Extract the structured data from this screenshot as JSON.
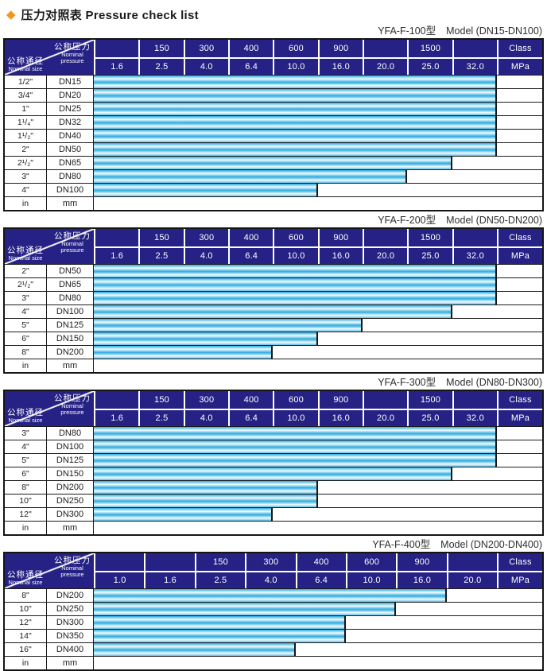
{
  "title": {
    "diamond": "◆",
    "text": "压力对照表 Pressure check list"
  },
  "labels": {
    "nominal_pressure_zh": "公称压力",
    "nominal_pressure_en": [
      "Nominal",
      "pressure"
    ],
    "nominal_size_zh": "公称通径",
    "nominal_size_en": "Nominal size",
    "class": "Class",
    "mpa": "MPa"
  },
  "colors": {
    "header_bg": "#262184",
    "bar_cyan": "#2CACDF",
    "bar_highlight": "#F2FBFF",
    "diamond_orange": "#F7941D",
    "border_dark": "#151515"
  },
  "chart_data": [
    {
      "type": "bar",
      "model": "YFA-F-100型",
      "range": "Model (DN15-DN100)",
      "class_row": [
        "",
        "150",
        "300",
        "400",
        "600",
        "900",
        "",
        "1500",
        ""
      ],
      "mpa_row": [
        "1.6",
        "2.5",
        "4.0",
        "6.4",
        "10.0",
        "16.0",
        "20.0",
        "25.0",
        "32.0"
      ],
      "class_unit": "Class",
      "mpa_unit": "MPa",
      "categories": [
        "DN15",
        "DN20",
        "DN25",
        "DN32",
        "DN40",
        "DN50",
        "DN65",
        "DN80",
        "DN100"
      ],
      "values": [
        32.0,
        32.0,
        32.0,
        32.0,
        32.0,
        32.0,
        25.0,
        20.0,
        10.0
      ],
      "rows": [
        {
          "size": "1/2\"",
          "dn": "DN15",
          "span": 9,
          "max_mpa": 32.0
        },
        {
          "size": "3/4\"",
          "dn": "DN20",
          "span": 9,
          "max_mpa": 32.0
        },
        {
          "size": "1\"",
          "dn": "DN25",
          "span": 9,
          "max_mpa": 32.0
        },
        {
          "size": "1¹/₄\"",
          "dn": "DN32",
          "span": 9,
          "max_mpa": 32.0
        },
        {
          "size": "1¹/₂\"",
          "dn": "DN40",
          "span": 9,
          "max_mpa": 32.0
        },
        {
          "size": "2\"",
          "dn": "DN50",
          "span": 9,
          "max_mpa": 32.0
        },
        {
          "size": "2¹/₂\"",
          "dn": "DN65",
          "span": 8,
          "max_mpa": 25.0
        },
        {
          "size": "3\"",
          "dn": "DN80",
          "span": 7,
          "max_mpa": 20.0
        },
        {
          "size": "4\"",
          "dn": "DN100",
          "span": 5,
          "max_mpa": 10.0
        }
      ],
      "unit_row": {
        "size": "in",
        "dn": "mm"
      }
    },
    {
      "type": "bar",
      "model": "YFA-F-200型",
      "range": "Model (DN50-DN200)",
      "class_row": [
        "",
        "150",
        "300",
        "400",
        "600",
        "900",
        "",
        "1500",
        ""
      ],
      "mpa_row": [
        "1.6",
        "2.5",
        "4.0",
        "6.4",
        "10.0",
        "16.0",
        "20.0",
        "25.0",
        "32.0"
      ],
      "class_unit": "Class",
      "mpa_unit": "MPa",
      "categories": [
        "DN50",
        "DN65",
        "DN80",
        "DN100",
        "DN125",
        "DN150",
        "DN200"
      ],
      "values": [
        32.0,
        32.0,
        32.0,
        25.0,
        16.0,
        10.0,
        6.4
      ],
      "rows": [
        {
          "size": "2\"",
          "dn": "DN50",
          "span": 9,
          "max_mpa": 32.0
        },
        {
          "size": "2¹/₂\"",
          "dn": "DN65",
          "span": 9,
          "max_mpa": 32.0
        },
        {
          "size": "3\"",
          "dn": "DN80",
          "span": 9,
          "max_mpa": 32.0
        },
        {
          "size": "4\"",
          "dn": "DN100",
          "span": 8,
          "max_mpa": 25.0
        },
        {
          "size": "5\"",
          "dn": "DN125",
          "span": 6,
          "max_mpa": 16.0
        },
        {
          "size": "6\"",
          "dn": "DN150",
          "span": 5,
          "max_mpa": 10.0
        },
        {
          "size": "8\"",
          "dn": "DN200",
          "span": 4,
          "max_mpa": 6.4
        }
      ],
      "unit_row": {
        "size": "in",
        "dn": "mm"
      }
    },
    {
      "type": "bar",
      "model": "YFA-F-300型",
      "range": "Model (DN80-DN300)",
      "class_row": [
        "",
        "150",
        "300",
        "400",
        "600",
        "900",
        "",
        "1500",
        ""
      ],
      "mpa_row": [
        "1.6",
        "2.5",
        "4.0",
        "6.4",
        "10.0",
        "16.0",
        "20.0",
        "25.0",
        "32.0"
      ],
      "class_unit": "Class",
      "mpa_unit": "MPa",
      "categories": [
        "DN80",
        "DN100",
        "DN125",
        "DN150",
        "DN200",
        "DN250",
        "DN300"
      ],
      "values": [
        32.0,
        32.0,
        32.0,
        25.0,
        10.0,
        10.0,
        6.4
      ],
      "rows": [
        {
          "size": "3\"",
          "dn": "DN80",
          "span": 9,
          "max_mpa": 32.0
        },
        {
          "size": "4\"",
          "dn": "DN100",
          "span": 9,
          "max_mpa": 32.0
        },
        {
          "size": "5\"",
          "dn": "DN125",
          "span": 9,
          "max_mpa": 32.0
        },
        {
          "size": "6\"",
          "dn": "DN150",
          "span": 8,
          "max_mpa": 25.0
        },
        {
          "size": "8\"",
          "dn": "DN200",
          "span": 5,
          "max_mpa": 10.0
        },
        {
          "size": "10\"",
          "dn": "DN250",
          "span": 5,
          "max_mpa": 10.0
        },
        {
          "size": "12\"",
          "dn": "DN300",
          "span": 4,
          "max_mpa": 6.4
        }
      ],
      "unit_row": {
        "size": "in",
        "dn": "mm"
      }
    },
    {
      "type": "bar",
      "model": "YFA-F-400型",
      "range": "Model (DN200-DN400)",
      "class_row": [
        "",
        "",
        "150",
        "300",
        "400",
        "600",
        "900",
        ""
      ],
      "mpa_row": [
        "1.0",
        "1.6",
        "2.5",
        "4.0",
        "6.4",
        "10.0",
        "16.0",
        "20.0"
      ],
      "class_unit": "Class",
      "mpa_unit": "MPa",
      "categories": [
        "DN200",
        "DN250",
        "DN300",
        "DN350",
        "DN400"
      ],
      "values": [
        16.0,
        10.0,
        6.4,
        6.4,
        4.0
      ],
      "rows": [
        {
          "size": "8\"",
          "dn": "DN200",
          "span": 7,
          "max_mpa": 16.0
        },
        {
          "size": "10\"",
          "dn": "DN250",
          "span": 6,
          "max_mpa": 10.0
        },
        {
          "size": "12\"",
          "dn": "DN300",
          "span": 5,
          "max_mpa": 6.4
        },
        {
          "size": "14\"",
          "dn": "DN350",
          "span": 5,
          "max_mpa": 6.4
        },
        {
          "size": "16\"",
          "dn": "DN400",
          "span": 4,
          "max_mpa": 4.0
        }
      ],
      "unit_row": {
        "size": "in",
        "dn": "mm"
      }
    }
  ]
}
